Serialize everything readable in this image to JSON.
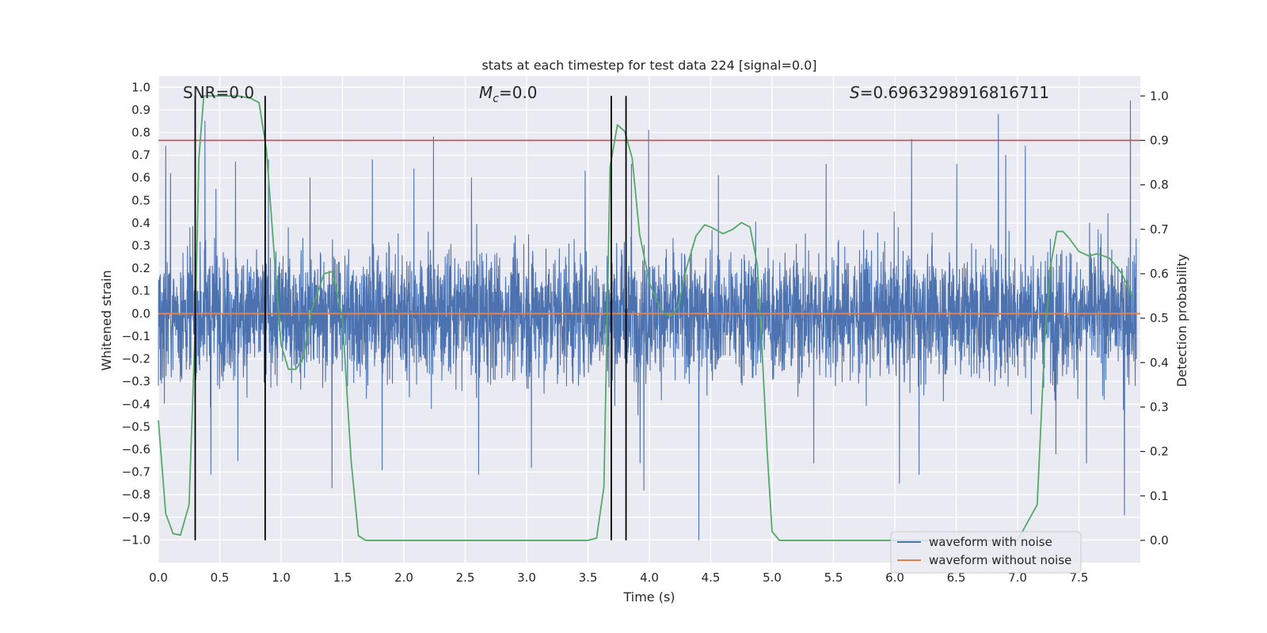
{
  "chart_data": {
    "type": "line",
    "title": "stats at each timestep for test data 224 [signal=0.0]",
    "xlabel": "Time (s)",
    "ylabel_left": "Whitened strain",
    "ylabel_right": "Detection probability",
    "xlim": [
      0.0,
      8.0
    ],
    "ylim_left": [
      -1.1,
      1.05
    ],
    "ylim_right": [
      -0.05,
      1.045
    ],
    "x_ticks": [
      0.0,
      0.5,
      1.0,
      1.5,
      2.0,
      2.5,
      3.0,
      3.5,
      4.0,
      4.5,
      5.0,
      5.5,
      6.0,
      6.5,
      7.0,
      7.5
    ],
    "x_tick_labels": [
      "0.0",
      "0.5",
      "1.0",
      "1.5",
      "2.0",
      "2.5",
      "3.0",
      "3.5",
      "4.0",
      "4.5",
      "5.0",
      "5.5",
      "6.0",
      "6.5",
      "7.0",
      "7.5"
    ],
    "y_left_ticks": [
      1.0,
      0.9,
      0.8,
      0.7,
      0.6,
      0.5,
      0.4,
      0.3,
      0.2,
      0.1,
      0.0,
      -0.1,
      -0.2,
      -0.3,
      -0.4,
      -0.5,
      -0.6,
      -0.7,
      -0.8,
      -0.9,
      -1.0
    ],
    "y_left_tick_labels": [
      "1.0",
      "0.9",
      "0.8",
      "0.7",
      "0.6",
      "0.5",
      "0.4",
      "0.3",
      "0.2",
      "0.1",
      "0.0",
      "−0.1",
      "−0.2",
      "−0.3",
      "−0.4",
      "−0.5",
      "−0.6",
      "−0.7",
      "−0.8",
      "−0.9",
      "−1.0"
    ],
    "y_right_ticks": [
      1.0,
      0.9,
      0.8,
      0.7,
      0.6,
      0.5,
      0.4,
      0.3,
      0.2,
      0.1,
      0.0
    ],
    "y_right_tick_labels": [
      "1.0",
      "0.9",
      "0.8",
      "0.7",
      "0.6",
      "0.5",
      "0.4",
      "0.3",
      "0.2",
      "0.1",
      "0.0"
    ],
    "annotations": {
      "snr": "SNR=0.0",
      "mc_symbol": "M",
      "mc_sub": "c",
      "mc_value": "=0.0",
      "s_symbol": "S",
      "s_value": "=0.6963298916816711"
    },
    "threshold": 0.9,
    "vertical_markers": [
      0.3,
      0.87,
      3.69,
      3.81
    ],
    "noise": {
      "samples": 4096,
      "envelope_low": -0.45,
      "envelope_high": 0.45,
      "spikes_up": [
        [
          0.06,
          0.74
        ],
        [
          0.1,
          0.62
        ],
        [
          0.38,
          0.85
        ],
        [
          0.47,
          0.55
        ],
        [
          0.63,
          0.67
        ],
        [
          0.9,
          0.68
        ],
        [
          1.24,
          0.6
        ],
        [
          1.75,
          0.68
        ],
        [
          2.09,
          0.64
        ],
        [
          2.25,
          0.78
        ],
        [
          2.56,
          0.6
        ],
        [
          3.49,
          0.63
        ],
        [
          3.87,
          0.66
        ],
        [
          4.01,
          0.81
        ],
        [
          4.58,
          0.61
        ],
        [
          5.46,
          0.66
        ],
        [
          6.16,
          0.77
        ],
        [
          6.53,
          0.66
        ],
        [
          6.87,
          0.88
        ],
        [
          6.93,
          0.7
        ],
        [
          7.09,
          0.74
        ],
        [
          7.95,
          0.94
        ]
      ],
      "spikes_down": [
        [
          0.43,
          -0.71
        ],
        [
          0.65,
          -0.65
        ],
        [
          1.42,
          -0.77
        ],
        [
          1.83,
          -0.69
        ],
        [
          2.62,
          -0.71
        ],
        [
          3.05,
          -0.68
        ],
        [
          3.94,
          -0.66
        ],
        [
          3.97,
          -0.78
        ],
        [
          4.42,
          -1.0
        ],
        [
          5.36,
          -0.66
        ],
        [
          6.06,
          -0.75
        ],
        [
          6.22,
          -0.71
        ],
        [
          7.34,
          -0.62
        ],
        [
          7.59,
          -0.66
        ],
        [
          7.9,
          -0.89
        ]
      ]
    },
    "series": [
      {
        "name": "waveform with noise",
        "color": "#4c72b0"
      },
      {
        "name": "waveform without noise",
        "color": "#dd8452",
        "x": [
          0.0,
          8.0
        ],
        "y": [
          0.0,
          0.0
        ]
      },
      {
        "name": "detection probability",
        "color": "#55a868",
        "x": [
          0.0,
          0.06,
          0.12,
          0.18,
          0.25,
          0.3,
          0.33,
          0.37,
          0.45,
          0.55,
          0.65,
          0.75,
          0.82,
          0.88,
          0.95,
          1.0,
          1.06,
          1.12,
          1.18,
          1.25,
          1.3,
          1.35,
          1.42,
          1.5,
          1.57,
          1.63,
          1.69,
          1.8,
          2.0,
          2.5,
          3.0,
          3.5,
          3.57,
          3.63,
          3.68,
          3.74,
          3.8,
          3.86,
          3.92,
          4.0,
          4.06,
          4.12,
          4.18,
          4.24,
          4.3,
          4.38,
          4.45,
          4.5,
          4.6,
          4.68,
          4.75,
          4.82,
          4.88,
          4.92,
          4.96,
          5.0,
          5.06,
          5.2,
          6.0,
          7.0,
          7.16,
          7.22,
          7.27,
          7.32,
          7.37,
          7.42,
          7.5,
          7.58,
          7.65,
          7.75,
          7.85,
          7.94
        ],
        "y": [
          0.27,
          0.06,
          0.015,
          0.012,
          0.08,
          0.48,
          0.86,
          1.0,
          1.0,
          1.0,
          1.0,
          0.995,
          0.985,
          0.88,
          0.62,
          0.44,
          0.385,
          0.385,
          0.41,
          0.52,
          0.56,
          0.6,
          0.605,
          0.5,
          0.18,
          0.01,
          0.0,
          0.0,
          0.0,
          0.0,
          0.0,
          0.0,
          0.005,
          0.12,
          0.84,
          0.935,
          0.92,
          0.86,
          0.69,
          0.58,
          0.54,
          0.51,
          0.505,
          0.53,
          0.61,
          0.685,
          0.71,
          0.705,
          0.69,
          0.7,
          0.715,
          0.705,
          0.62,
          0.42,
          0.2,
          0.02,
          0.0,
          0.0,
          0.0,
          0.0,
          0.08,
          0.44,
          0.62,
          0.695,
          0.695,
          0.68,
          0.65,
          0.64,
          0.645,
          0.635,
          0.6,
          0.545
        ]
      }
    ],
    "legend_location": "lower right"
  }
}
